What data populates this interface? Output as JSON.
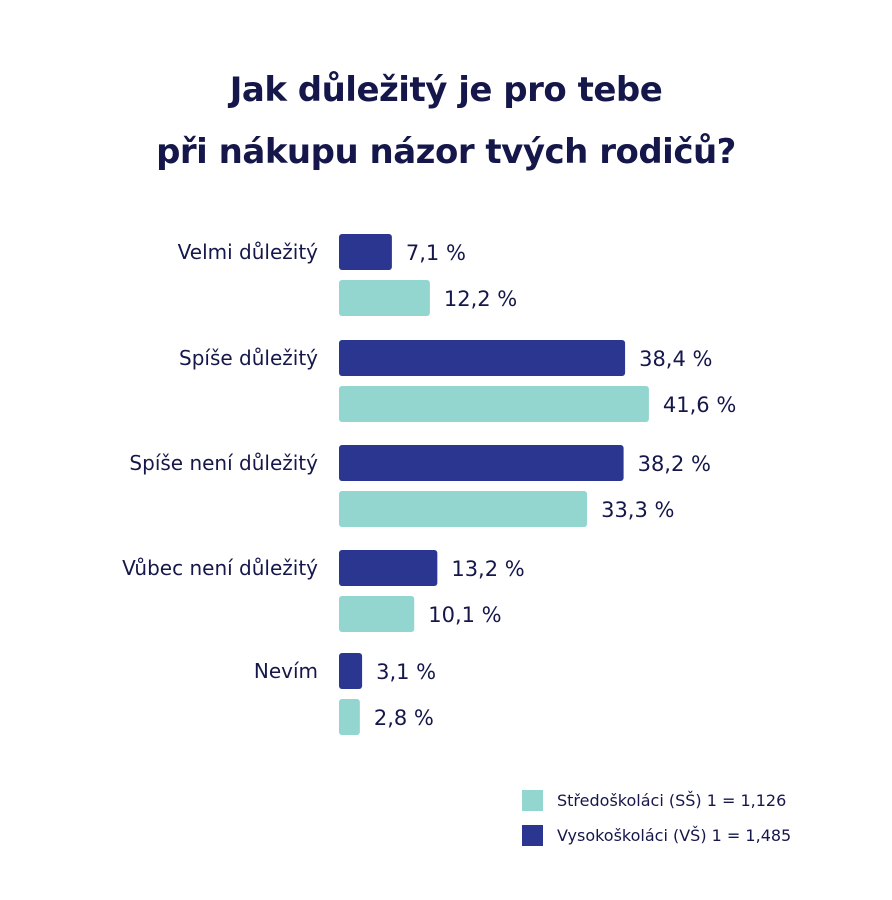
{
  "title_line1": "Jak důležitý je pro tebe",
  "title_line2": "při nákupu názor tvých rodičů?",
  "colors": {
    "text": "#15174a",
    "vs": "#2b3691",
    "ss": "#93d6cf"
  },
  "legend": {
    "ss": "Středoškoláci (SŠ) 1 = 1,126",
    "vs": "Vysokoškoláci (VŠ) 1 = 1,485"
  },
  "chart_data": {
    "type": "bar",
    "orientation": "horizontal",
    "categories": [
      "Velmi důležitý",
      "Spíše důležitý",
      "Spíše není důležitý",
      "Vůbec není důležitý",
      "Nevím"
    ],
    "series": [
      {
        "name": "Vysokoškoláci (VŠ) 1 = 1,485",
        "color": "#2b3691",
        "values": [
          7.1,
          38.4,
          38.2,
          13.2,
          3.1
        ],
        "labels": [
          "7,1 %",
          "38,4 %",
          "38,2 %",
          "13,2 %",
          "3,1 %"
        ]
      },
      {
        "name": "Středoškoláci (SŠ) 1 = 1,126",
        "color": "#93d6cf",
        "values": [
          12.2,
          41.6,
          33.3,
          10.1,
          2.8
        ],
        "labels": [
          "12,2 %",
          "41,6 %",
          "33,3 %",
          "10,1 %",
          "2,8 %"
        ]
      }
    ],
    "xlim": [
      0,
      45
    ],
    "grid": false,
    "legend_position": "bottom-right"
  }
}
